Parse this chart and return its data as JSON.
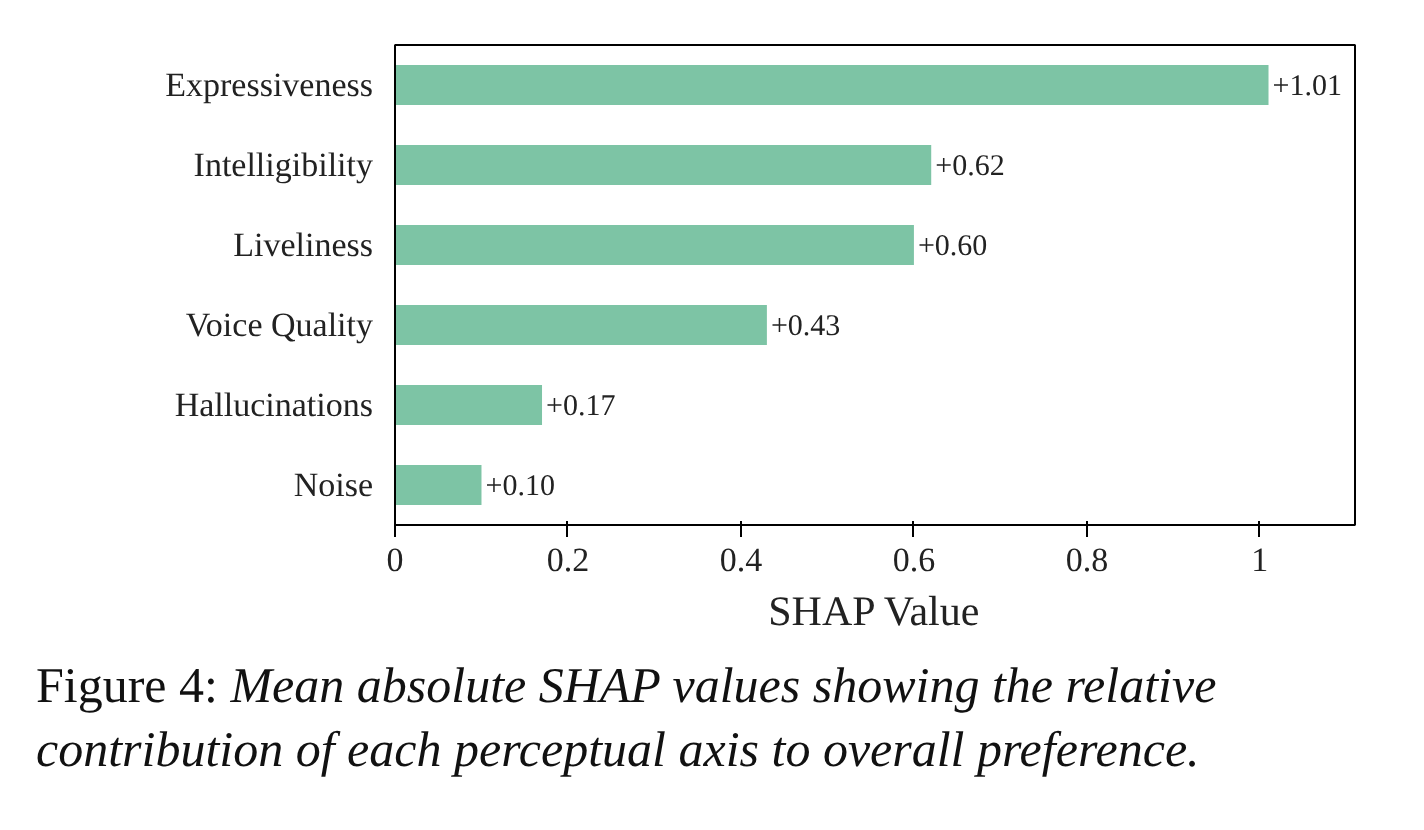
{
  "chart_data": {
    "type": "bar",
    "orientation": "horizontal",
    "categories": [
      "Expressiveness",
      "Intelligibility",
      "Liveliness",
      "Voice Quality",
      "Hallucinations",
      "Noise"
    ],
    "values": [
      1.01,
      0.62,
      0.6,
      0.43,
      0.17,
      0.1
    ],
    "value_labels": [
      "+1.01",
      "+0.62",
      "+0.60",
      "+0.43",
      "+0.17",
      "+0.10"
    ],
    "color": "#7dc4a5",
    "xlim": [
      0,
      1.11
    ],
    "xticks": [
      0,
      0.2,
      0.4,
      0.6,
      0.8,
      1
    ],
    "xlabel": "SHAP Value",
    "grid": false,
    "annotations": [
      "Figure 4: Mean absolute SHAP values showing the relative contribution of each perceptual axis to overall preference."
    ]
  }
}
